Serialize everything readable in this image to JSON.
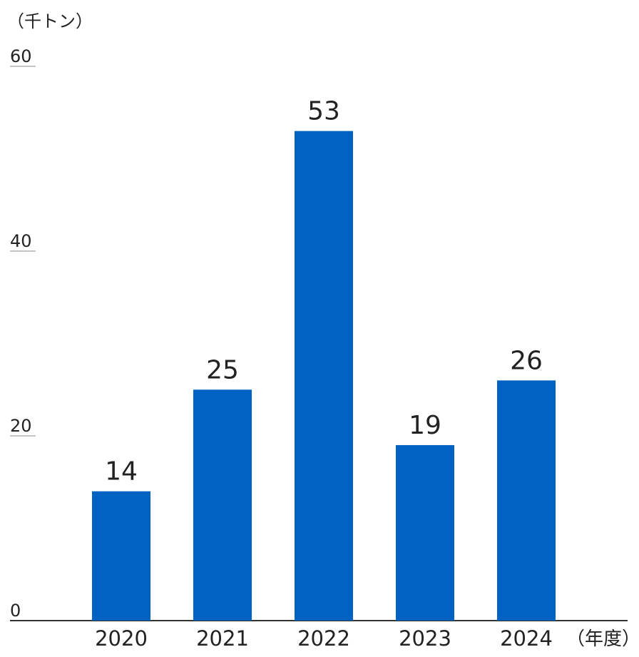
{
  "chart_data": {
    "type": "bar",
    "y_label": "（千トン）",
    "x_label": "（年度）",
    "categories": [
      "2020",
      "2021",
      "2022",
      "2023",
      "2024"
    ],
    "values": [
      14,
      25,
      53,
      19,
      26
    ],
    "color": "#0062c3",
    "ylim": [
      0,
      60
    ],
    "yticks": [
      0,
      20,
      40,
      60
    ]
  }
}
